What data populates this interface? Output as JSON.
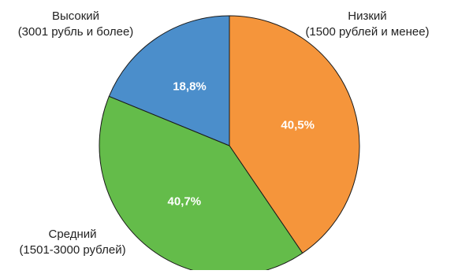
{
  "chart_data": {
    "type": "pie",
    "title": "",
    "start": "12 o'clock",
    "direction": "clockwise",
    "slices": [
      {
        "category": "Низкий",
        "label_lines": [
          "Низкий",
          "(1500 рублей и менее)"
        ],
        "value": 40.5,
        "value_label": "40,5%",
        "color": "#f5953b"
      },
      {
        "category": "Средний",
        "label_lines": [
          "Средний",
          "(1501-3000 рублей)"
        ],
        "value": 40.7,
        "value_label": "40,7%",
        "color": "#64bc4a"
      },
      {
        "category": "Высокий",
        "label_lines": [
          "Высокий",
          "(3001 рубль и более)"
        ],
        "value": 18.8,
        "value_label": "18,8%",
        "color": "#4b8ecb"
      }
    ],
    "legend": "none"
  }
}
